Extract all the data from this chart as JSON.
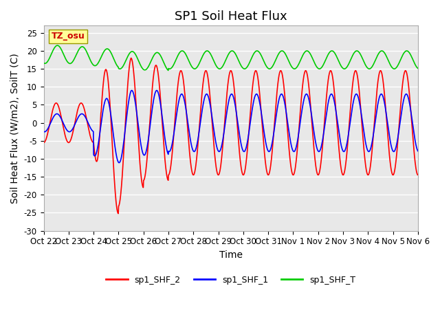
{
  "title": "SP1 Soil Heat Flux",
  "xlabel": "Time",
  "ylabel": "Soil Heat Flux (W/m2), SoilT (C)",
  "ylim": [
    -30,
    27
  ],
  "yticks": [
    -30,
    -25,
    -20,
    -15,
    -10,
    -5,
    0,
    5,
    10,
    15,
    20,
    25
  ],
  "background_color": "#ffffff",
  "plot_bg_color": "#e8e8e8",
  "grid_color": "#ffffff",
  "tz_label": "TZ_osu",
  "tz_box_color": "#ffff99",
  "tz_text_color": "#cc0000",
  "legend_labels": [
    "sp1_SHF_2",
    "sp1_SHF_1",
    "sp1_SHF_T"
  ],
  "legend_colors": [
    "#ff0000",
    "#0000ff",
    "#00cc00"
  ],
  "line_width": 1.2,
  "x_tick_labels": [
    "Oct 22",
    "Oct 23",
    "Oct 24",
    "Oct 25",
    "Oct 26",
    "Oct 27",
    "Oct 28",
    "Oct 29",
    "Oct 30",
    "Oct 31",
    "Nov 1",
    "Nov 2",
    "Nov 3",
    "Nov 4",
    "Nov 5",
    "Nov 6"
  ],
  "num_days": 15,
  "title_fontsize": 13,
  "axis_label_fontsize": 10,
  "tick_fontsize": 8.5
}
